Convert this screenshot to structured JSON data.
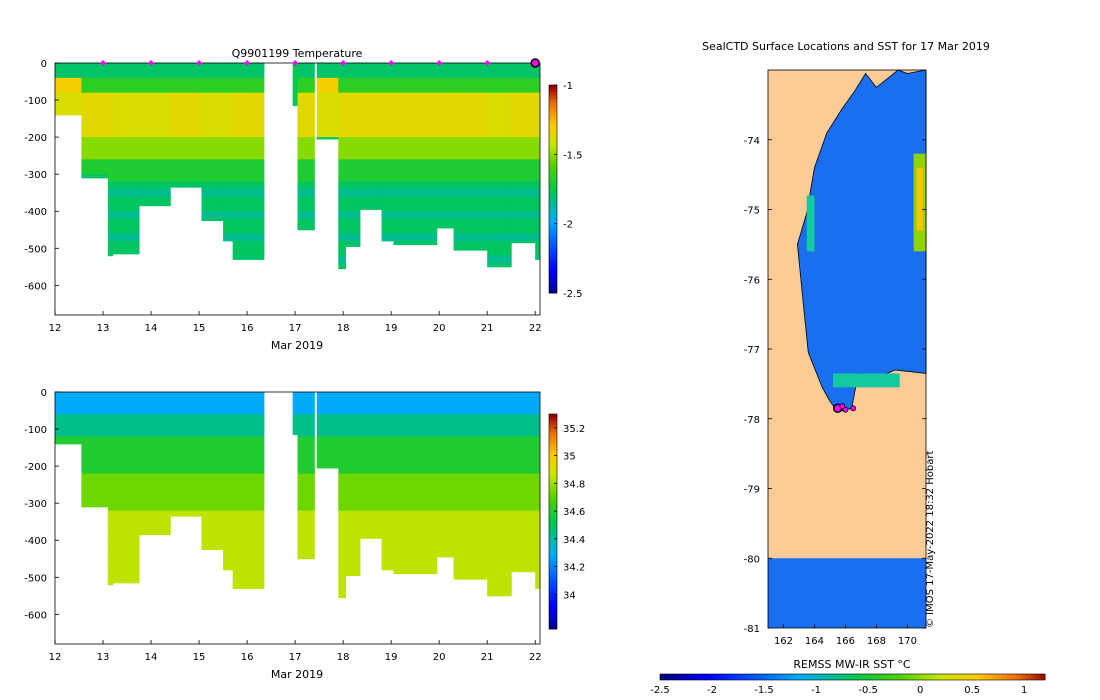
{
  "chart_data": [
    {
      "type": "heatmap",
      "title": "Q9901199  Temperature",
      "xlabel": "Mar 2019",
      "xlim": [
        12,
        22.1
      ],
      "ylim": [
        -680,
        0
      ],
      "xticks": [
        12,
        13,
        14,
        15,
        16,
        17,
        18,
        19,
        20,
        21,
        22
      ],
      "xticklabels": [
        "12",
        "13",
        "14",
        "15",
        "16",
        "17",
        "18",
        "19",
        "20",
        "21",
        "22"
      ],
      "yticks": [
        0,
        -100,
        -200,
        -300,
        -400,
        -500,
        -600
      ],
      "yticklabels": [
        "0",
        "-100",
        "-200",
        "-300",
        "-400",
        "-500",
        "-600"
      ],
      "colorbar": {
        "min": -2.5,
        "max": -1,
        "ticks": [
          -1,
          -1.5,
          -2,
          -2.5
        ],
        "ticklabels": [
          "-1",
          "-1.5",
          "-2",
          "-2.5"
        ]
      },
      "profile_markers_x": [
        13,
        14,
        15,
        16,
        17,
        18,
        19,
        20,
        21
      ],
      "highlight_marker": {
        "x": 22,
        "y": 0
      },
      "profiles": [
        {
          "x0": 12.0,
          "x1": 12.55,
          "depth": 140,
          "kind": "warm_shallow",
          "v": -1.6
        },
        {
          "x0": 12.55,
          "x1": 13.1,
          "depth": 310,
          "kind": "warm_mid",
          "v": -1.8
        },
        {
          "x0": 13.1,
          "x1": 13.2,
          "depth": 520,
          "kind": "warm_mid",
          "v": -1.8
        },
        {
          "x0": 13.2,
          "x1": 13.75,
          "depth": 515,
          "kind": "warm_top",
          "v": -1.8
        },
        {
          "x0": 13.75,
          "x1": 14.4,
          "depth": 385,
          "kind": "warm_top",
          "v": -1.8
        },
        {
          "x0": 14.4,
          "x1": 15.05,
          "depth": 335,
          "kind": "warm_mid",
          "v": -1.8
        },
        {
          "x0": 15.05,
          "x1": 15.5,
          "depth": 425,
          "kind": "warm_top",
          "v": -1.8
        },
        {
          "x0": 15.5,
          "x1": 15.7,
          "depth": 480,
          "kind": "warm_top",
          "v": -1.8
        },
        {
          "x0": 15.7,
          "x1": 16.35,
          "depth": 530,
          "kind": "warm_mid",
          "v": -1.8
        },
        {
          "x0": 16.95,
          "x1": 17.05,
          "depth": 115,
          "kind": "cold_only",
          "v": -1.8
        },
        {
          "x0": 17.05,
          "x1": 17.4,
          "depth": 450,
          "kind": "warm_mid",
          "v": -1.8
        },
        {
          "x0": 17.45,
          "x1": 17.9,
          "depth": 205,
          "kind": "warm_shallow",
          "v": -1.8
        },
        {
          "x0": 17.9,
          "x1": 18.05,
          "depth": 555,
          "kind": "warm_mid",
          "v": -1.8
        },
        {
          "x0": 18.05,
          "x1": 18.35,
          "depth": 495,
          "kind": "warm_mid",
          "v": -1.8
        },
        {
          "x0": 18.35,
          "x1": 18.8,
          "depth": 395,
          "kind": "warm_mid",
          "v": -1.8
        },
        {
          "x0": 18.8,
          "x1": 19.05,
          "depth": 480,
          "kind": "warm_mid",
          "v": -1.8
        },
        {
          "x0": 19.05,
          "x1": 19.45,
          "depth": 490,
          "kind": "warm_mid",
          "v": -1.8
        },
        {
          "x0": 19.45,
          "x1": 19.95,
          "depth": 490,
          "kind": "warm_mid",
          "v": -1.8
        },
        {
          "x0": 19.95,
          "x1": 20.3,
          "depth": 445,
          "kind": "warm_mid",
          "v": -1.8
        },
        {
          "x0": 20.3,
          "x1": 20.75,
          "depth": 505,
          "kind": "warm_mid",
          "v": -1.8
        },
        {
          "x0": 20.75,
          "x1": 21.0,
          "depth": 505,
          "kind": "warm_mid",
          "v": -1.8
        },
        {
          "x0": 21.0,
          "x1": 21.5,
          "depth": 550,
          "kind": "warm_top",
          "v": -1.8
        },
        {
          "x0": 21.5,
          "x1": 22.0,
          "depth": 485,
          "kind": "warm_mid",
          "v": -1.8
        },
        {
          "x0": 22.0,
          "x1": 22.08,
          "depth": 530,
          "kind": "warm_mid",
          "v": -1.8
        }
      ]
    },
    {
      "type": "heatmap",
      "title": "",
      "xlabel": "Mar 2019",
      "xlim": [
        12,
        22.1
      ],
      "ylim": [
        -680,
        0
      ],
      "xticks": [
        12,
        13,
        14,
        15,
        16,
        17,
        18,
        19,
        20,
        21,
        22
      ],
      "xticklabels": [
        "12",
        "13",
        "14",
        "15",
        "16",
        "17",
        "18",
        "19",
        "20",
        "21",
        "22"
      ],
      "yticks": [
        0,
        -100,
        -200,
        -300,
        -400,
        -500,
        -600
      ],
      "yticklabels": [
        "0",
        "-100",
        "-200",
        "-300",
        "-400",
        "-500",
        "-600"
      ],
      "colorbar": {
        "min": 33.75,
        "max": 35.3,
        "ticks": [
          35.2,
          35,
          34.8,
          34.6,
          34.4,
          34.2,
          34
        ],
        "ticklabels": [
          "35.2",
          "35",
          "34.8",
          "34.6",
          "34.4",
          "34.2",
          "34"
        ]
      }
    },
    {
      "type": "map",
      "title": "SealCTD Surface Locations and SST for 17 Mar 2019",
      "xlim": [
        161,
        171.2
      ],
      "ylim": [
        -81,
        -73
      ],
      "xticks": [
        162,
        164,
        166,
        168,
        170
      ],
      "xticklabels": [
        "162",
        "164",
        "166",
        "168",
        "170"
      ],
      "yticks": [
        -74,
        -75,
        -76,
        -77,
        -78,
        -79,
        -80,
        -81
      ],
      "yticklabels": [
        "-74",
        "-75",
        "-76",
        "-77",
        "-78",
        "-79",
        "-80",
        "-81"
      ],
      "credit": "© IMOS 17-May-2022 18:32 Hobart",
      "locations": [
        {
          "lon": 165.5,
          "lat": -77.85
        },
        {
          "lon": 166.0,
          "lat": -77.87
        },
        {
          "lon": 166.5,
          "lat": -77.85
        },
        {
          "lon": 165.8,
          "lat": -77.82
        }
      ],
      "colorbar": {
        "label": "REMSS MW-IR SST °C",
        "min": -2.5,
        "max": 1.2,
        "ticks": [
          -2.5,
          -2,
          -1.5,
          -1,
          -0.5,
          0,
          0.5,
          1
        ],
        "ticklabels": [
          "-2.5",
          "-2",
          "-1.5",
          "-1",
          "-0.5",
          "0",
          "0.5",
          "1"
        ]
      }
    }
  ]
}
